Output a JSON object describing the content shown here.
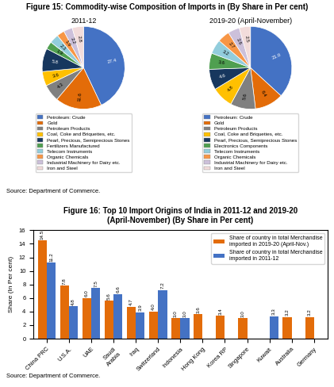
{
  "chart_data": [
    {
      "type": "pie",
      "subtitle": "Figure 15: Commodity-wise Composition of Imports in (By Share in Per cent)",
      "title": "2011-12",
      "categories": [
        "Petroleum: Crude",
        "Gold",
        "Petroleum Products",
        "Coal, Coke and Briquettes, etc.",
        "Pearl, Precious, Semiprecious Stones",
        "Fertilizers Manufactured",
        "Telecom Instruments",
        "Organic Chemicals",
        "Industrial Machinery for Dairy etc.",
        "Iron and Steel"
      ],
      "values": [
        27.4,
        11.6,
        4.3,
        3.6,
        5.8,
        1.9,
        2.3,
        1.9,
        2.2,
        2.8
      ],
      "colors": [
        "#4472C4",
        "#E36C09",
        "#808080",
        "#FFC000",
        "#17375E",
        "#4F9F50",
        "#92CDDC",
        "#F79646",
        "#CCC0DA",
        "#F2DCDB"
      ],
      "data_labels": true,
      "legend": "upper center",
      "annotations": [
        "Source: Department of Commerce."
      ]
    },
    {
      "type": "pie",
      "title": "2019-20 (April-November)",
      "categories": [
        "Petroleum: Crude",
        "Gold",
        "Petroleum Products",
        "Coal, Coke and Briquettes, etc.",
        "Pearl, Precious, Semiprecious Stones",
        "Electronics Components",
        "Telecom Instruments",
        "Organic Chemicals",
        "Industrial Machinery for Dairy etc.",
        "Iron and Steel"
      ],
      "values": [
        21.0,
        6.4,
        5.6,
        4.8,
        4.6,
        3.6,
        3.2,
        2.7,
        2.6,
        2.5
      ],
      "colors": [
        "#4472C4",
        "#E36C09",
        "#808080",
        "#FFC000",
        "#17375E",
        "#4F9F50",
        "#92CDDC",
        "#F79646",
        "#CCC0DA",
        "#F2DCDB"
      ],
      "data_labels": true,
      "legend": "upper center"
    },
    {
      "type": "bar",
      "title": "Figure 16: Top 10 Import Origins of India in 2011-12 and 2019-20\n(April-November) (By Share in Per cent)",
      "y_label": "Share (In Per cent)",
      "categories": [
        "China PRC",
        "U.S.A.",
        "UAE",
        "Saudi\nArabia",
        "Iraq",
        "Switzerland",
        "Indonesia",
        "Hong Kong",
        "Korea RP",
        "Singapore",
        "Kuwait",
        "Australia",
        "Germany"
      ],
      "series": [
        {
          "name": "Share of country in total Merchandise\nimported in 2019-20 (April-Nov.)",
          "color": "#E36C09",
          "values": [
            14.5,
            7.8,
            6.0,
            5.6,
            4.7,
            4.0,
            3.0,
            3.6,
            3.4,
            3.0,
            null,
            3.2,
            3.2
          ]
        },
        {
          "name": "Share of country in total Merchandise\nimported in 2011-12",
          "color": "#4472C4",
          "values": [
            11.2,
            4.8,
            7.5,
            6.6,
            3.9,
            7.2,
            3.0,
            null,
            null,
            null,
            3.3,
            null,
            null
          ]
        }
      ],
      "ylim": [
        0,
        16
      ],
      "yticks": [
        0,
        2,
        4,
        6,
        8,
        10,
        12,
        14,
        16
      ],
      "data_labels": true,
      "legend": "upper right",
      "annotations": [
        "Source: Department of Commerce."
      ]
    }
  ]
}
